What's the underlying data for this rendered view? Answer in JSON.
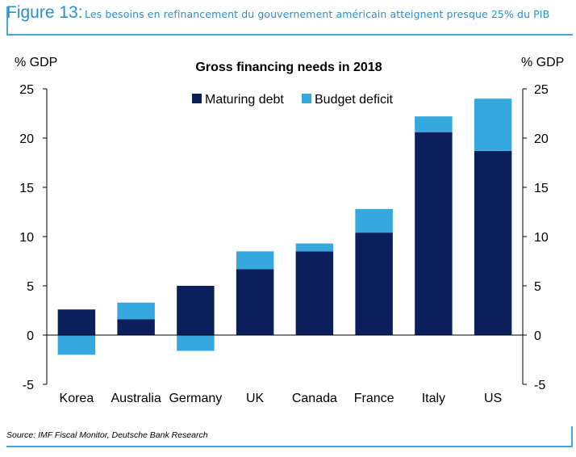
{
  "figure": {
    "label": "Figure 13:",
    "subtitle": "Les besoins en refinancement du gouvernement américain atteignent presque 25% du PIB"
  },
  "source": "Source: IMF Fiscal Monitor, Deutsche Bank Research",
  "colors": {
    "maturing": "#0b1f5c",
    "deficit": "#35a8e0",
    "frame": "#4ea3d8"
  },
  "chart_data": {
    "type": "bar",
    "stacked": true,
    "title": "Gross financing needs in 2018",
    "ylabel_left": "% GDP",
    "ylabel_right": "% GDP",
    "ylim": [
      -5,
      25
    ],
    "yticks": [
      -5,
      0,
      5,
      10,
      15,
      20,
      25
    ],
    "categories": [
      "Korea",
      "Australia",
      "Germany",
      "UK",
      "Canada",
      "France",
      "Italy",
      "US"
    ],
    "series": [
      {
        "name": "Maturing debt",
        "values": [
          2.6,
          1.6,
          5.0,
          6.7,
          8.5,
          10.4,
          20.6,
          18.7
        ]
      },
      {
        "name": "Budget deficit",
        "values": [
          -2.0,
          1.7,
          -1.6,
          1.8,
          0.8,
          2.4,
          1.6,
          5.3
        ]
      }
    ],
    "legend_position": "top-center",
    "grid": false
  }
}
